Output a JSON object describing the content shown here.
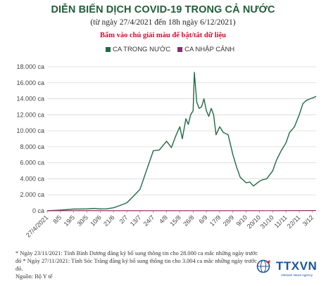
{
  "header": {
    "title": "DIỄN BIẾN DỊCH COVID-19 TRONG CẢ NƯỚC",
    "subtitle": "(từ ngày 27/4/2021 đến 18h ngày 6/12/2021)",
    "instruction": "Bấm vào chú giải màu để bật/tắt dữ liệu"
  },
  "legend": {
    "items": [
      {
        "label": "CA TRONG NƯỚC",
        "color": "#1f6b45"
      },
      {
        "label": "CA NHẬP CẢNH",
        "color": "#8e2a6e"
      }
    ]
  },
  "chart_data": {
    "type": "line",
    "title": "DIỄN BIẾN DỊCH COVID-19 TRONG CẢ NƯỚC",
    "ylim": [
      0,
      18000
    ],
    "y_ticks": [
      "0 ca",
      "2.000 ca",
      "4.000 ca",
      "6.000 ca",
      "8.000 ca",
      "10.000 ca",
      "12.000 ca",
      "14.000 ca",
      "16.000 ca",
      "18.000 ca"
    ],
    "y_tick_values": [
      0,
      2000,
      4000,
      6000,
      8000,
      10000,
      12000,
      14000,
      16000,
      18000
    ],
    "x_tick_labels": [
      "27/4/2021",
      "8/5",
      "19/5",
      "30/5",
      "10/6",
      "21/6",
      "2/7",
      "13/7",
      "24/7",
      "4/8",
      "15/8",
      "26/8",
      "6/9",
      "17/9",
      "28/9",
      "9/10",
      "20/10",
      "31/10",
      "11/11",
      "22/11",
      "3/12"
    ],
    "grid": true,
    "legend_position": "top",
    "series": [
      {
        "name": "CA TRONG NƯỚC",
        "color": "#1f6b45",
        "x": [
          "27/4",
          "2/5",
          "8/5",
          "14/5",
          "19/5",
          "25/5",
          "30/5",
          "5/6",
          "10/6",
          "15/6",
          "21/6",
          "26/6",
          "2/7",
          "8/7",
          "13/7",
          "18/7",
          "24/7",
          "29/7",
          "4/8",
          "8/8",
          "12/8",
          "15/8",
          "17/8",
          "20/8",
          "22/8",
          "24/8",
          "26/8",
          "27/8",
          "29/8",
          "31/8",
          "2/9",
          "4/9",
          "6/9",
          "8/9",
          "10/9",
          "12/9",
          "14/9",
          "17/9",
          "20/9",
          "24/9",
          "28/9",
          "1/10",
          "4/10",
          "9/10",
          "12/10",
          "15/10",
          "20/10",
          "23/10",
          "26/10",
          "31/10",
          "3/11",
          "7/11",
          "11/11",
          "14/11",
          "18/11",
          "22/11",
          "25/11",
          "28/11",
          "1/12",
          "3/12",
          "6/12"
        ],
        "values": [
          10,
          40,
          90,
          160,
          230,
          230,
          250,
          300,
          240,
          250,
          380,
          650,
          1000,
          1900,
          2700,
          4900,
          7500,
          7600,
          8700,
          7900,
          9500,
          10500,
          9000,
          11500,
          10800,
          12000,
          12500,
          17300,
          13600,
          12800,
          13000,
          14000,
          12500,
          11800,
          12800,
          12000,
          9500,
          10500,
          9800,
          9500,
          7000,
          5500,
          4200,
          3500,
          3600,
          3100,
          3700,
          3900,
          4000,
          5000,
          6300,
          7500,
          8500,
          9800,
          10500,
          12000,
          13400,
          13800,
          14000,
          14100,
          14300
        ]
      },
      {
        "name": "CA NHẬP CẢNH",
        "color": "#8e2a6e",
        "x": [
          "27/4",
          "30/5",
          "2/7",
          "4/8",
          "6/9",
          "9/10",
          "11/11",
          "6/12"
        ],
        "values": [
          20,
          30,
          20,
          20,
          20,
          20,
          30,
          40
        ]
      }
    ]
  },
  "notes": [
    "* Ngày 23/11/2021: Tỉnh Bình Dương đăng ký bổ sung thông tin cho 28.000 ca mắc những ngày trước đó * Ngày 27/11/2021: Tỉnh Sóc Trăng đăng ký bổ sung thông tin cho 3.004 ca mắc những ngày trước đó.",
    "Nguồn: Bộ Y tế"
  ],
  "logo": {
    "text": "TTXVN",
    "sub": "Vietnam News Agency"
  }
}
